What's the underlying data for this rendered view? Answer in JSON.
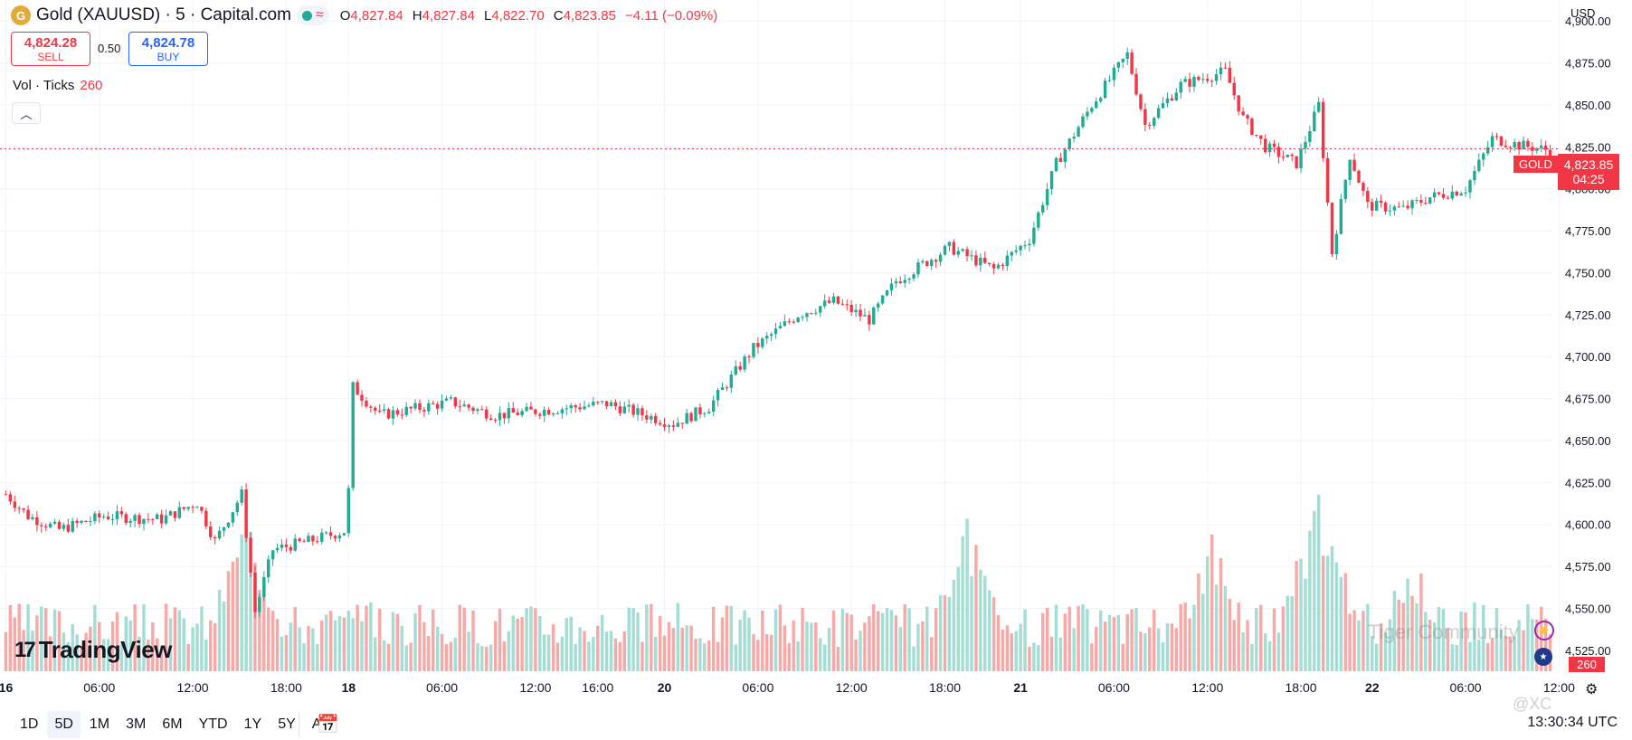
{
  "header": {
    "coin_letter": "G",
    "symbol": "Gold (XAUUSD) · 5 · Capital.com",
    "wave_glyph": "≈",
    "ohlc": {
      "o_label": "O",
      "o": "4,827.84",
      "h_label": "H",
      "h": "4,827.84",
      "l_label": "L",
      "l": "4,822.70",
      "c_label": "C",
      "c": "4,823.85",
      "change": "−4.11 (−0.09%)"
    }
  },
  "trade": {
    "sell_price": "4,824.28",
    "sell_label": "SELL",
    "spread": "0.50",
    "buy_price": "4,824.78",
    "buy_label": "BUY"
  },
  "volume_legend": {
    "label": "Vol · Ticks",
    "value": "260"
  },
  "currency": "USD",
  "price_tag": {
    "symbol": "GOLD",
    "price": "4,823.85",
    "countdown": "04:25"
  },
  "volume_tag": "260",
  "logo_text": "TradingView",
  "logo_mark": "17",
  "timeframes": [
    "1D",
    "5D",
    "1M",
    "3M",
    "6M",
    "YTD",
    "1Y",
    "5Y",
    "All"
  ],
  "active_timeframe": "5D",
  "clock": "13:30:34 UTC",
  "watermark": {
    "brand": "Tiger Community",
    "user": "@XC"
  },
  "colors": {
    "up": "#22ab94",
    "down": "#f23645",
    "up_vol": "#a4ddd4",
    "down_vol": "#f7a9a7",
    "grid": "#f0f3fa"
  },
  "chart_data": {
    "type": "candlestick",
    "title": "Gold (XAUUSD) 5-minute, Capital.com",
    "ylabel": "USD",
    "ylim": [
      4512.5,
      4912.5
    ],
    "yticks": [
      4525,
      4550,
      4575,
      4600,
      4625,
      4650,
      4675,
      4700,
      4725,
      4750,
      4775,
      4800,
      4825,
      4850,
      4875,
      4900
    ],
    "xticks": [
      {
        "label": "16",
        "bold": true,
        "bar": 0
      },
      {
        "label": "06:00",
        "bar": 21
      },
      {
        "label": "12:00",
        "bar": 42
      },
      {
        "label": "18:00",
        "bar": 63
      },
      {
        "label": "18",
        "bold": true,
        "bar": 77
      },
      {
        "label": "06:00",
        "bar": 98
      },
      {
        "label": "12:00",
        "bar": 119
      },
      {
        "label": "16:00",
        "bar": 133
      },
      {
        "label": "20",
        "bold": true,
        "bar": 148
      },
      {
        "label": "06:00",
        "bar": 169
      },
      {
        "label": "12:00",
        "bar": 190
      },
      {
        "label": "18:00",
        "bar": 211
      },
      {
        "label": "21",
        "bold": true,
        "bar": 228
      },
      {
        "label": "06:00",
        "bar": 249
      },
      {
        "label": "12:00",
        "bar": 270
      },
      {
        "label": "18:00",
        "bar": 291
      },
      {
        "label": "22",
        "bold": true,
        "bar": 307
      },
      {
        "label": "06:00",
        "bar": 328
      },
      {
        "label": "12:00",
        "bar": 349
      }
    ],
    "bars_per_hour": 3.5,
    "price_path": [
      {
        "bar": 0,
        "price": 4618
      },
      {
        "bar": 5,
        "price": 4605
      },
      {
        "bar": 12,
        "price": 4597
      },
      {
        "bar": 22,
        "price": 4605
      },
      {
        "bar": 35,
        "price": 4603
      },
      {
        "bar": 43,
        "price": 4613
      },
      {
        "bar": 47,
        "price": 4590
      },
      {
        "bar": 53,
        "price": 4618
      },
      {
        "bar": 56,
        "price": 4548
      },
      {
        "bar": 60,
        "price": 4585
      },
      {
        "bar": 68,
        "price": 4590
      },
      {
        "bar": 76,
        "price": 4596
      },
      {
        "bar": 77,
        "price": 4620
      },
      {
        "bar": 78,
        "price": 4682
      },
      {
        "bar": 84,
        "price": 4665
      },
      {
        "bar": 100,
        "price": 4673
      },
      {
        "bar": 110,
        "price": 4665
      },
      {
        "bar": 135,
        "price": 4672
      },
      {
        "bar": 150,
        "price": 4660
      },
      {
        "bar": 158,
        "price": 4670
      },
      {
        "bar": 168,
        "price": 4705
      },
      {
        "bar": 178,
        "price": 4725
      },
      {
        "bar": 186,
        "price": 4733
      },
      {
        "bar": 194,
        "price": 4722
      },
      {
        "bar": 200,
        "price": 4745
      },
      {
        "bar": 212,
        "price": 4765
      },
      {
        "bar": 222,
        "price": 4752
      },
      {
        "bar": 230,
        "price": 4770
      },
      {
        "bar": 236,
        "price": 4815
      },
      {
        "bar": 244,
        "price": 4850
      },
      {
        "bar": 252,
        "price": 4880
      },
      {
        "bar": 256,
        "price": 4838
      },
      {
        "bar": 264,
        "price": 4862
      },
      {
        "bar": 274,
        "price": 4870
      },
      {
        "bar": 278,
        "price": 4842
      },
      {
        "bar": 283,
        "price": 4825
      },
      {
        "bar": 290,
        "price": 4815
      },
      {
        "bar": 295,
        "price": 4850
      },
      {
        "bar": 298,
        "price": 4762
      },
      {
        "bar": 302,
        "price": 4820
      },
      {
        "bar": 306,
        "price": 4790
      },
      {
        "bar": 314,
        "price": 4788
      },
      {
        "bar": 320,
        "price": 4795
      },
      {
        "bar": 328,
        "price": 4800
      },
      {
        "bar": 334,
        "price": 4830
      },
      {
        "bar": 340,
        "price": 4826
      },
      {
        "bar": 347,
        "price": 4823
      }
    ],
    "volume_spikes": [
      {
        "bar": 54,
        "ticks": 420
      },
      {
        "bar": 216,
        "ticks": 380
      },
      {
        "bar": 271,
        "ticks": 350
      },
      {
        "bar": 295,
        "ticks": 500
      },
      {
        "bar": 316,
        "ticks": 300
      }
    ],
    "current_price": 4823.85,
    "last_volume": 260
  }
}
